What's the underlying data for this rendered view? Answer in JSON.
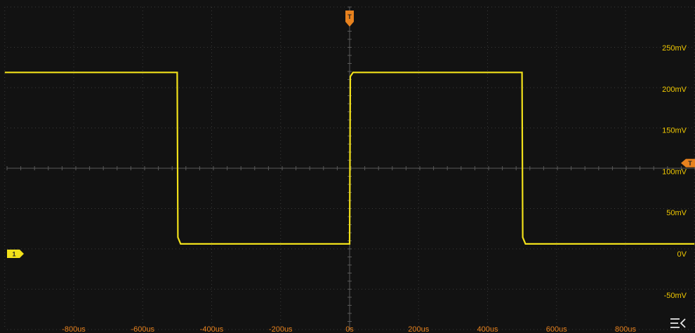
{
  "trigger_marker": {
    "label": "T",
    "color": "#e8821e"
  },
  "level_marker": {
    "label": "T",
    "color": "#e8821e"
  },
  "channel_marker": {
    "label": "1",
    "color": "#f2e11a"
  },
  "menu_icon": "menu-collapse-icon",
  "colors": {
    "background": "#121212",
    "grid": "#3a3a3a",
    "trace": "#f2e11a",
    "y_labels": "#f0c800",
    "x_labels": "#e8821e"
  },
  "chart_data": {
    "type": "line",
    "title": "",
    "xlabel": "",
    "ylabel": "",
    "x_unit": "us",
    "y_unit": "mV",
    "xlim": [
      -1000,
      1000
    ],
    "ylim": [
      -75,
      300
    ],
    "grid": true,
    "x_ticks": [
      -800,
      -600,
      -400,
      -200,
      0,
      200,
      400,
      600,
      800
    ],
    "x_tick_labels": [
      "-800us",
      "-600us",
      "-400us",
      "-200us",
      "0s",
      "200us",
      "400us",
      "600us",
      "800us"
    ],
    "y_ticks": [
      250,
      200,
      150,
      100,
      50,
      0,
      -50
    ],
    "y_tick_labels": [
      "250mV",
      "200mV",
      "150mV",
      "100mV",
      "50mV",
      "0V",
      "-50mV"
    ],
    "trigger_time": 0,
    "trigger_level": 110,
    "series": [
      {
        "x": [
          -1000,
          -500,
          -498,
          -490,
          0,
          2,
          10,
          500,
          502,
          510,
          1000
        ],
        "y": [
          220,
          220,
          20,
          12,
          12,
          215,
          220,
          220,
          20,
          12,
          12
        ]
      }
    ]
  }
}
